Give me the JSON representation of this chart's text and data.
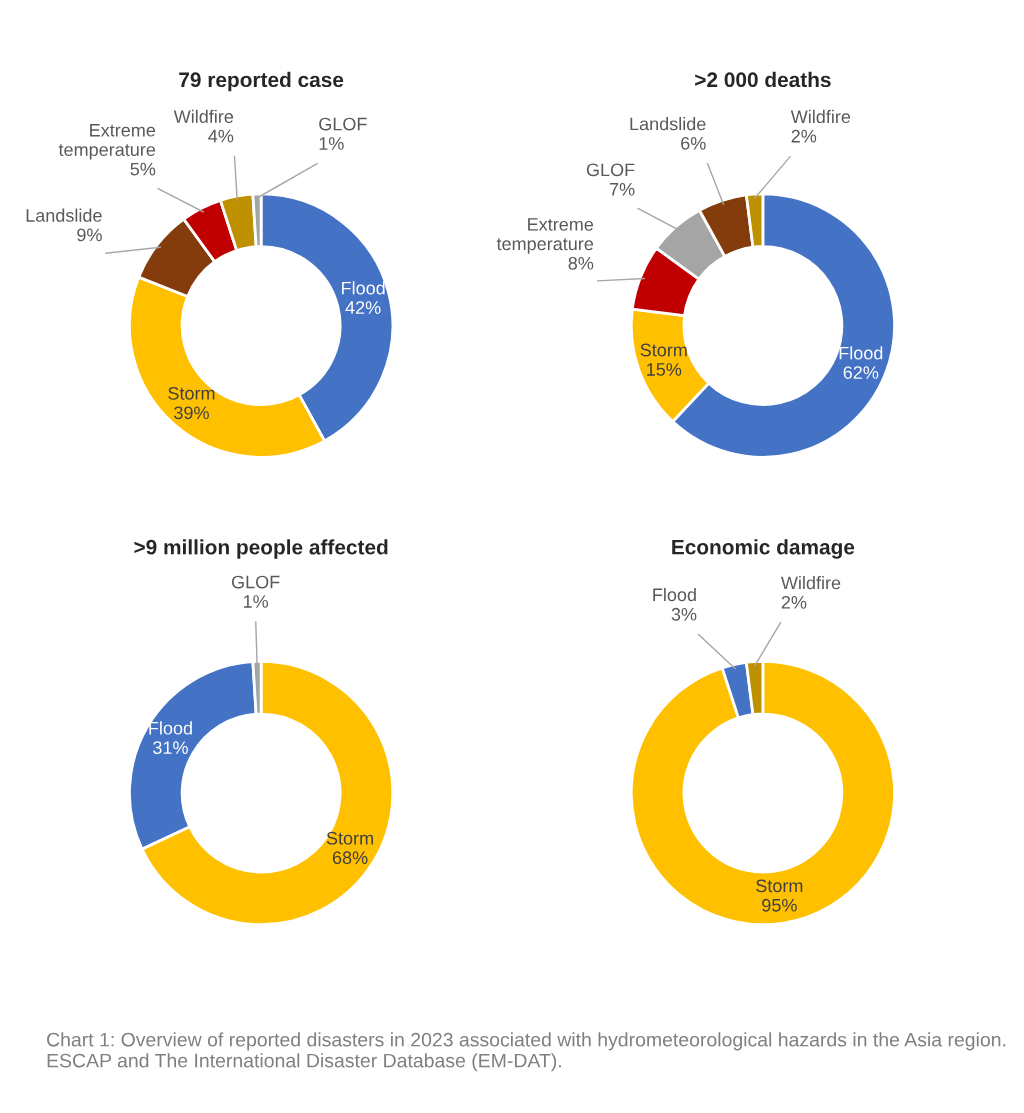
{
  "chart_data": [
    {
      "type": "donut",
      "title": "79 reported case",
      "categories": [
        "Flood",
        "Storm",
        "Landslide",
        "Extreme temperature",
        "Wildfire",
        "GLOF"
      ],
      "values": [
        42,
        39,
        9,
        5,
        4,
        1
      ],
      "value_labels": [
        "42%",
        "39%",
        "9%",
        "5%",
        "4%",
        "1%"
      ],
      "colors": [
        "#4472c4",
        "#ffc000",
        "#843c0c",
        "#c00000",
        "#bf9000",
        "#a5a5a5"
      ],
      "annotations": [
        "Chart 1: Overview of reported disasters in 2023 associated with hydrometeorological hazards in the Asia region. ESCAP and The International Disaster Database (EM-DAT)."
      ]
    },
    {
      "type": "donut",
      "title": ">2 000 deaths",
      "categories": [
        "Flood",
        "Storm",
        "Extreme temperature",
        "GLOF",
        "Landslide",
        "Wildfire"
      ],
      "values": [
        62,
        15,
        8,
        7,
        6,
        2
      ],
      "value_labels": [
        "62%",
        "15%",
        "8%",
        "7%",
        "6%",
        "2%"
      ],
      "colors": [
        "#4472c4",
        "#ffc000",
        "#c00000",
        "#a5a5a5",
        "#843c0c",
        "#bf9000"
      ]
    },
    {
      "type": "donut",
      "title": ">9 million people affected",
      "categories": [
        "Storm",
        "Flood",
        "GLOF"
      ],
      "values": [
        68,
        31,
        1
      ],
      "value_labels": [
        "68%",
        "31%",
        "1%"
      ],
      "colors": [
        "#ffc000",
        "#4472c4",
        "#a5a5a5"
      ]
    },
    {
      "type": "donut",
      "title": "Economic damage",
      "categories": [
        "Storm",
        "Flood",
        "Wildfire"
      ],
      "values": [
        95,
        3,
        2
      ],
      "value_labels": [
        "95%",
        "3%",
        "2%"
      ],
      "colors": [
        "#ffc000",
        "#4472c4",
        "#bf9000"
      ]
    }
  ]
}
